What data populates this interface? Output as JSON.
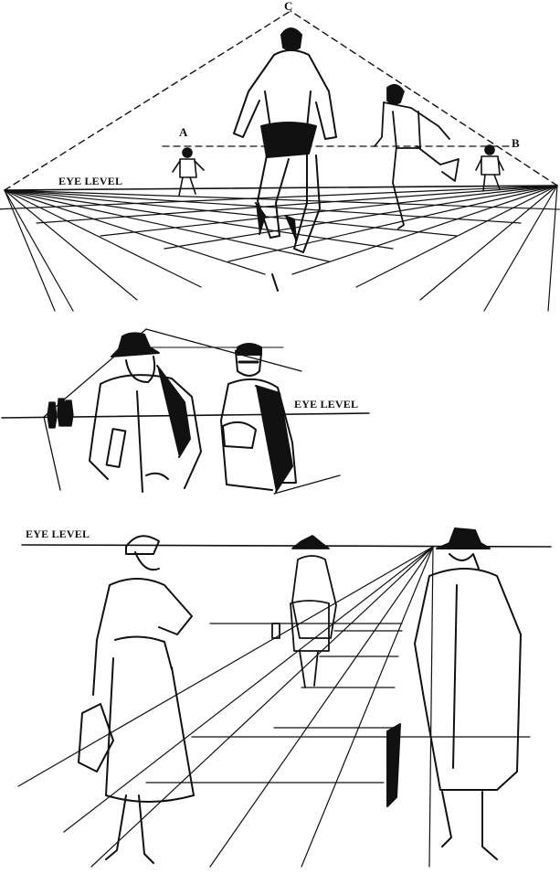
{
  "panels": {
    "top": {
      "eye_level_label": "EYE LEVEL",
      "point_a": "A",
      "point_b": "B",
      "point_c": "C"
    },
    "middle": {
      "eye_level_label": "EYE LEVEL"
    },
    "bottom": {
      "eye_level_label": "EYE LEVEL"
    }
  },
  "colors": {
    "ink": "#111111",
    "paper": "#ffffff"
  }
}
